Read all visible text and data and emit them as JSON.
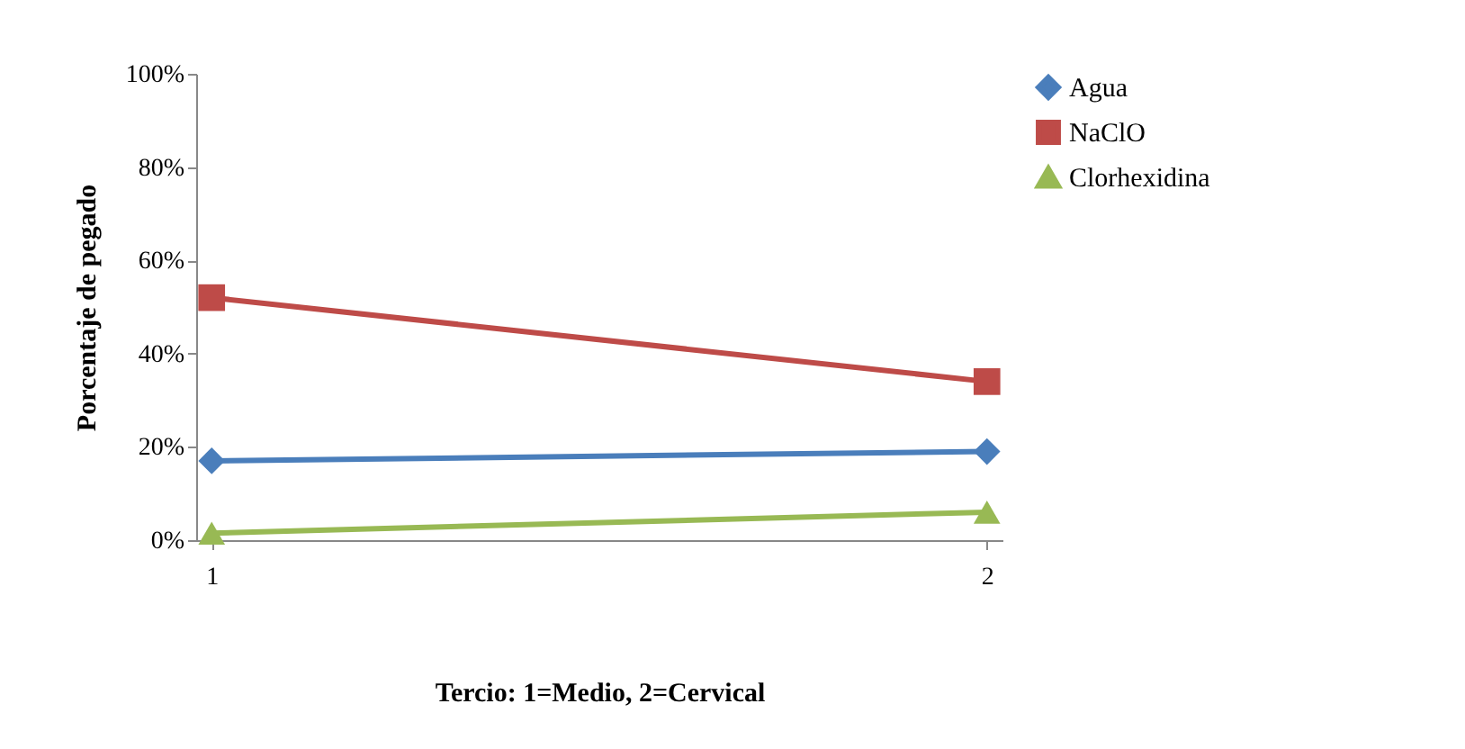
{
  "chart_data": {
    "type": "line",
    "xlabel": "Tercio: 1=Medio, 2=Cervical",
    "ylabel": "Porcentaje de pegado",
    "categories": [
      "1",
      "2"
    ],
    "series": [
      {
        "name": "Agua",
        "color": "#4a7ebb",
        "marker": "diamond",
        "values": [
          17,
          19
        ]
      },
      {
        "name": "NaClO",
        "color": "#be4b48",
        "marker": "square",
        "values": [
          52,
          34
        ]
      },
      {
        "name": "Clorhexidina",
        "color": "#98b954",
        "marker": "triangle",
        "values": [
          1.5,
          6
        ]
      }
    ],
    "ylim": [
      0,
      100
    ],
    "yticks": [
      {
        "value": 0,
        "label": "0%"
      },
      {
        "value": 20,
        "label": "20%"
      },
      {
        "value": 40,
        "label": "40%"
      },
      {
        "value": 60,
        "label": "60%"
      },
      {
        "value": 80,
        "label": "80%"
      },
      {
        "value": 100,
        "label": "100%"
      }
    ],
    "grid": false,
    "legend": "right"
  }
}
